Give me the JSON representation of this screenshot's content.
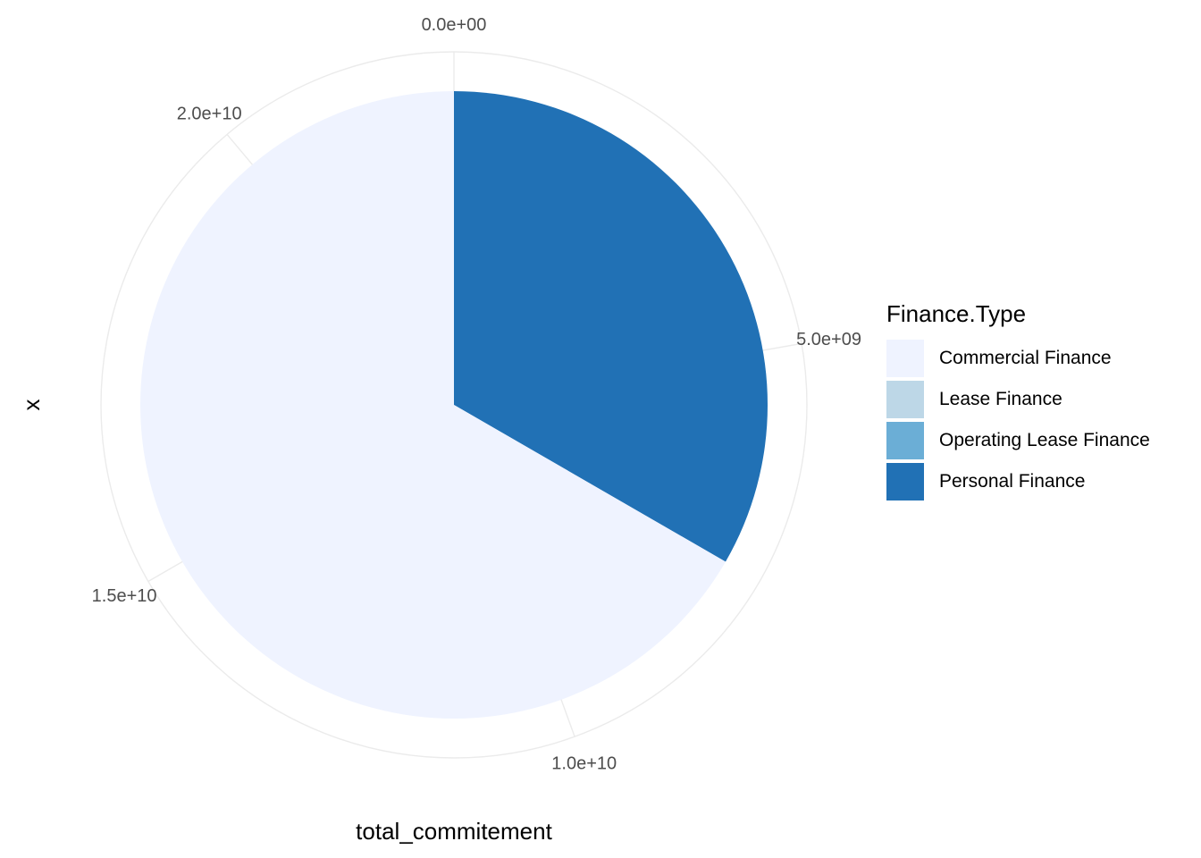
{
  "chart_data": {
    "type": "pie",
    "xlabel": "total_commitement",
    "ylabel": "x",
    "legend": {
      "title": "Finance.Type",
      "position": "right",
      "entries": [
        {
          "label": "Commercial Finance",
          "color": "#eff3ff"
        },
        {
          "label": "Lease Finance",
          "color": "#bdd7e7"
        },
        {
          "label": "Operating Lease Finance",
          "color": "#6baed6"
        },
        {
          "label": "Personal Finance",
          "color": "#2171b5"
        }
      ]
    },
    "scale_max": 22500000000,
    "slices": [
      {
        "label": "Personal Finance",
        "value": 7500000000,
        "color": "#2171b5"
      },
      {
        "label": "Operating Lease Finance",
        "value": 0,
        "color": "#6baed6"
      },
      {
        "label": "Lease Finance",
        "value": 0,
        "color": "#bdd7e7"
      },
      {
        "label": "Commercial Finance",
        "value": 15000000000,
        "color": "#eff3ff"
      }
    ],
    "tick_values": [
      0,
      5000000000,
      10000000000,
      15000000000,
      20000000000
    ],
    "tick_labels": [
      "0.0e+00",
      "5.0e+09",
      "1.0e+10",
      "1.5e+10",
      "2.0e+10"
    ],
    "grid": true
  }
}
